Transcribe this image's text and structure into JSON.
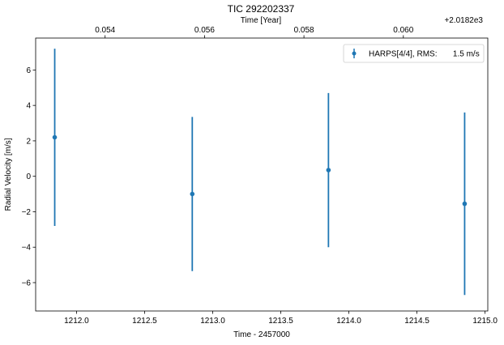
{
  "chart_data": {
    "type": "scatter",
    "title": "TIC 292202337",
    "xlabel": "Time - 2457000",
    "ylabel": "Radial Velocity [m/s]",
    "top_xlabel": "Time [Year]",
    "top_offset_label": "+2.0182e3",
    "xlim": [
      1211.7,
      1215.02
    ],
    "ylim": [
      -7.6,
      7.8
    ],
    "x_ticks": [
      1212.0,
      1212.5,
      1213.0,
      1213.5,
      1214.0,
      1214.5,
      1215.0
    ],
    "x_tick_labels": [
      "1212.0",
      "1212.5",
      "1213.0",
      "1213.5",
      "1214.0",
      "1214.5",
      "1215.0"
    ],
    "y_ticks": [
      -6,
      -4,
      -2,
      0,
      2,
      4,
      6
    ],
    "y_tick_labels": [
      "−6",
      "−4",
      "−2",
      "0",
      "2",
      "4",
      "6"
    ],
    "top_x_ticks": [
      1212.21,
      1212.94,
      1213.67,
      1214.4
    ],
    "top_x_tick_labels": [
      "0.054",
      "0.056",
      "0.058",
      "0.060"
    ],
    "legend_position": "top-right",
    "grid": false,
    "series": [
      {
        "name": "HARPS[4/4], RMS:       1.5 m/s",
        "color": "#1f77b4",
        "x": [
          1211.84,
          1212.85,
          1213.85,
          1214.85
        ],
        "y": [
          2.2,
          -1.0,
          0.35,
          -1.55
        ],
        "yerr": [
          5.0,
          4.35,
          4.35,
          5.15
        ]
      }
    ]
  }
}
